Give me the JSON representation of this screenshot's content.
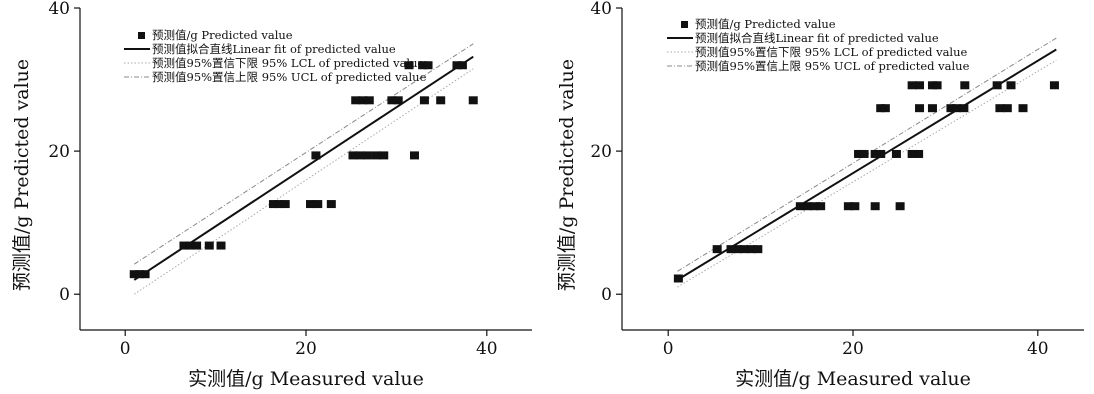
{
  "chart_data": [
    {
      "type": "scatter",
      "xlabel": "实测值/g Measured value",
      "ylabel": "预测值/g Predicted value",
      "xlim": [
        -5,
        45
      ],
      "ylim": [
        -5,
        40
      ],
      "xticks": [
        0,
        20,
        40
      ],
      "yticks": [
        0,
        20,
        40
      ],
      "legend_position": "top-left",
      "legend": {
        "points": "预测值/g Predicted value",
        "fit": "预测值拟合直线Linear fit of predicted value",
        "lcl": "预测值95%置信下限  95% LCL of predicted value",
        "ucl": "预测值95%置信上限  95% UCL of predicted value"
      },
      "fit": [
        [
          1,
          2
        ],
        [
          38.5,
          33.2
        ]
      ],
      "lcl": [
        [
          1,
          0
        ],
        [
          38.5,
          31.5
        ]
      ],
      "ucl": [
        [
          1,
          4.2
        ],
        [
          38.5,
          35
        ]
      ],
      "points": [
        [
          1,
          2.8
        ],
        [
          1.6,
          2.8
        ],
        [
          2.2,
          2.8
        ],
        [
          6.5,
          6.8
        ],
        [
          7.2,
          6.8
        ],
        [
          7.9,
          6.8
        ],
        [
          9.3,
          6.8
        ],
        [
          10.6,
          6.8
        ],
        [
          16.4,
          12.6
        ],
        [
          17,
          12.6
        ],
        [
          17.7,
          12.6
        ],
        [
          20.5,
          12.6
        ],
        [
          21.3,
          12.6
        ],
        [
          22.8,
          12.6
        ],
        [
          21.1,
          19.4
        ],
        [
          25.2,
          19.4
        ],
        [
          26,
          19.4
        ],
        [
          26.8,
          19.4
        ],
        [
          27.8,
          19.4
        ],
        [
          28.6,
          19.4
        ],
        [
          32,
          19.4
        ],
        [
          25.5,
          27.1
        ],
        [
          26.3,
          27.1
        ],
        [
          27,
          27.1
        ],
        [
          29.5,
          27.1
        ],
        [
          30.2,
          27.1
        ],
        [
          33.1,
          27.1
        ],
        [
          34.9,
          27.1
        ],
        [
          38.5,
          27.1
        ],
        [
          31.4,
          32
        ],
        [
          32.9,
          32
        ],
        [
          33.5,
          32
        ],
        [
          36.7,
          32
        ],
        [
          37.3,
          32
        ]
      ]
    },
    {
      "type": "scatter",
      "xlabel": "实测值/g Measured value",
      "ylabel": "预测值/g Predicted value",
      "xlim": [
        -5,
        45
      ],
      "ylim": [
        -5,
        40
      ],
      "xticks": [
        0,
        20,
        40
      ],
      "yticks": [
        0,
        20,
        40
      ],
      "legend_position": "top-left",
      "legend": {
        "points": "预测值/g Predicted value",
        "fit": "预测值拟合直线Linear fit of predicted value",
        "lcl": "预测值95%置信下限  95% LCL of predicted value",
        "ucl": "预测值95%置信上限  95% UCL of predicted value"
      },
      "fit": [
        [
          1,
          2
        ],
        [
          42,
          34.2
        ]
      ],
      "lcl": [
        [
          1,
          1
        ],
        [
          42,
          32.7
        ]
      ],
      "ucl": [
        [
          1,
          3.2
        ],
        [
          42,
          35.8
        ]
      ],
      "points": [
        [
          1.1,
          2.2
        ],
        [
          5.3,
          6.3
        ],
        [
          6.8,
          6.3
        ],
        [
          7.5,
          6.3
        ],
        [
          8.2,
          6.3
        ],
        [
          9,
          6.3
        ],
        [
          9.7,
          6.3
        ],
        [
          14.3,
          12.3
        ],
        [
          15.1,
          12.3
        ],
        [
          15.8,
          12.3
        ],
        [
          16.5,
          12.3
        ],
        [
          19.5,
          12.3
        ],
        [
          20.2,
          12.3
        ],
        [
          22.4,
          12.3
        ],
        [
          25.1,
          12.3
        ],
        [
          20.6,
          19.6
        ],
        [
          21.2,
          19.6
        ],
        [
          22.4,
          19.6
        ],
        [
          23,
          19.6
        ],
        [
          24.7,
          19.6
        ],
        [
          26.4,
          19.6
        ],
        [
          27.1,
          19.6
        ],
        [
          23,
          26
        ],
        [
          23.5,
          26
        ],
        [
          27.2,
          26
        ],
        [
          28.6,
          26
        ],
        [
          30.6,
          26
        ],
        [
          31.2,
          26
        ],
        [
          32,
          26
        ],
        [
          35.9,
          26
        ],
        [
          36.7,
          26
        ],
        [
          38.4,
          26
        ],
        [
          26.4,
          29.2
        ],
        [
          27.2,
          29.2
        ],
        [
          28.6,
          29.2
        ],
        [
          29.1,
          29.2
        ],
        [
          32.1,
          29.2
        ],
        [
          35.6,
          29.2
        ],
        [
          37.1,
          29.2
        ],
        [
          41.8,
          29.2
        ]
      ]
    }
  ]
}
